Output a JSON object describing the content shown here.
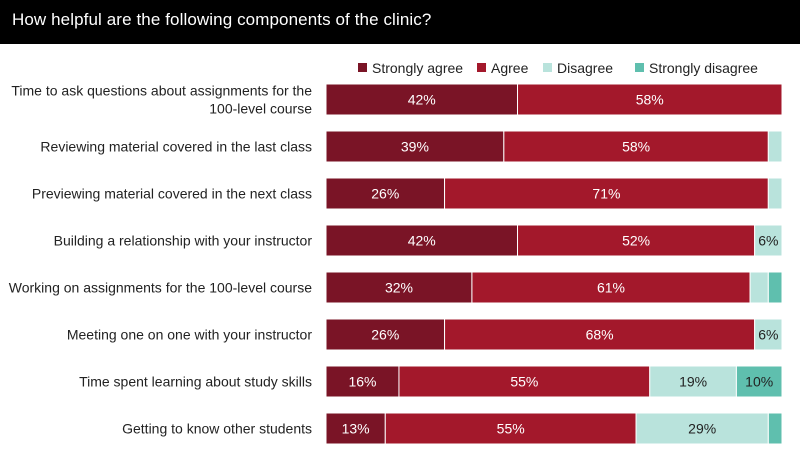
{
  "header": {
    "title": "How helpful are the following components of the clinic?"
  },
  "chart_data": {
    "type": "bar",
    "orientation": "horizontal",
    "stacked": true,
    "title": "How helpful are the following components of the clinic?",
    "xlim": [
      0,
      100
    ],
    "legend_position": "top-right",
    "grid": false,
    "categories": [
      [
        "Time to ask questions about assignments for the",
        "100-level course"
      ],
      [
        "Reviewing material covered in the last class"
      ],
      [
        "Previewing material covered in the next class"
      ],
      [
        "Building a relationship with your instructor"
      ],
      [
        "Working on assignments for the 100-level course"
      ],
      [
        "Meeting one on one with your instructor"
      ],
      [
        "Time spent learning about study skills"
      ],
      [
        "Getting to know other students"
      ]
    ],
    "series": [
      {
        "name": "Strongly agree",
        "color": "#7a1426",
        "text_color": "#ffffff",
        "values": [
          42,
          39,
          26,
          42,
          32,
          26,
          16,
          13
        ],
        "labels": [
          "42%",
          "39%",
          "26%",
          "42%",
          "32%",
          "26%",
          "16%",
          "13%"
        ]
      },
      {
        "name": "Agree",
        "color": "#a3182b",
        "text_color": "#ffffff",
        "values": [
          58,
          58,
          71,
          52,
          61,
          68,
          55,
          55
        ],
        "labels": [
          "58%",
          "58%",
          "71%",
          "52%",
          "61%",
          "68%",
          "55%",
          "55%"
        ]
      },
      {
        "name": "Disagree",
        "color": "#b9e3dc",
        "text_color": "#222222",
        "values": [
          0,
          3,
          3,
          6,
          4,
          6,
          19,
          29
        ],
        "labels": [
          "",
          "",
          "",
          "6%",
          "",
          "6%",
          "19%",
          "29%"
        ]
      },
      {
        "name": "Strongly disagree",
        "color": "#5fbfae",
        "text_color": "#222222",
        "values": [
          0,
          0,
          0,
          0,
          3,
          0,
          10,
          3
        ],
        "labels": [
          "",
          "",
          "",
          "",
          "",
          "",
          "10%",
          ""
        ]
      }
    ]
  }
}
